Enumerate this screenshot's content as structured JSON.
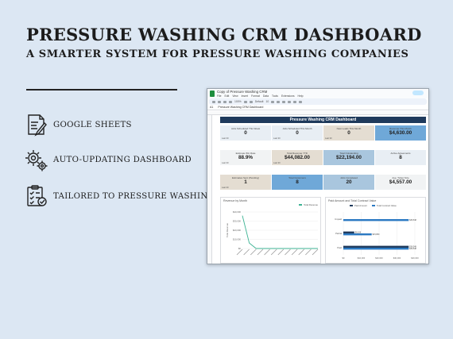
{
  "header": {
    "title": "PRESSURE WASHING CRM DASHBOARD",
    "subtitle": "A SMARTER SYSTEM FOR PRESSURE WASHING COMPANIES"
  },
  "features": [
    {
      "icon": "spreadsheet-pen-icon",
      "label": "GOOGLE SHEETS"
    },
    {
      "icon": "gears-icon",
      "label": "AUTO-UPDATING DASHBOARD"
    },
    {
      "icon": "checklist-icon",
      "label": "TAILORED TO PRESSURE WASHING"
    }
  ],
  "spreadsheet": {
    "doc_title": "Copy of Pressure Washing CRM",
    "menus": [
      "File",
      "Edit",
      "View",
      "Insert",
      "Format",
      "Data",
      "Tools",
      "Extensions",
      "Help"
    ],
    "zoom": "100%",
    "font": "Default",
    "font_size": "10",
    "cell_ref": "A1",
    "formula": "Pressure Washing CRM Dashboard",
    "banner": "Pressure Washing CRM Dashboard",
    "row1": [
      {
        "label": "Jobs Scheduled This Week",
        "value": "0"
      },
      {
        "label": "Jobs Scheduled This Month",
        "value": "0"
      },
      {
        "label": "New Leads This Month",
        "value": "0"
      },
      {
        "label": "Revenue This Month",
        "value": "$4,630.00"
      }
    ],
    "row2": [
      {
        "label": "Estimate Win Rate",
        "value": "88.9%"
      },
      {
        "label": "Total Revenue YTD",
        "value": "$44,082.00"
      },
      {
        "label": "Total Outstanding",
        "value": "$22,194.00"
      },
      {
        "label": "Active Agreements",
        "value": "8"
      }
    ],
    "row3": [
      {
        "label": "Estimates Sent (Pending)",
        "value": "1"
      },
      {
        "label": "Total Customers",
        "value": "8"
      },
      {
        "label": "Jobs Completed",
        "value": "20"
      },
      {
        "label": "Avg. Ticket Size",
        "value": "$4,557.00"
      }
    ],
    "card_footer": "Last 30"
  },
  "chart_data": [
    {
      "type": "line",
      "title": "Revenue by Month",
      "series": [
        {
          "name": "Total Revenue",
          "values": [
            36000,
            6000,
            0,
            0,
            0,
            0,
            0,
            0,
            0,
            0,
            0,
            0
          ]
        }
      ],
      "ylim": [
        0,
        40000
      ],
      "yticks": [
        "$40,000",
        "$30,000",
        "$20,000",
        "$10,000",
        "$0"
      ],
      "ylabel": "Total Revenue",
      "color": "#3cb393"
    },
    {
      "type": "bar",
      "title": "Paid Amount and Total Contract Value",
      "categories": [
        "Unpaid",
        "Partial",
        "Paid"
      ],
      "series": [
        {
          "name": "Paid Amount",
          "values": [
            0,
            6108,
            36548
          ],
          "color": "#1f3a5c"
        },
        {
          "name": "Total Contract Value",
          "values": [
            36548,
            15860,
            36548
          ],
          "color": "#2b79c2"
        }
      ],
      "value_labels": [
        "$36,548",
        "$6,108",
        "$15,860",
        "$36,548",
        "$36,548"
      ],
      "xlim": [
        0,
        40000
      ],
      "xticks": [
        "$0",
        "$10,000",
        "$20,000",
        "$30,000",
        "$40,000"
      ]
    }
  ],
  "colors": {
    "background": "#dce7f3",
    "banner": "#1f3a5c",
    "accent": "#2b79c2",
    "line": "#3cb393"
  }
}
